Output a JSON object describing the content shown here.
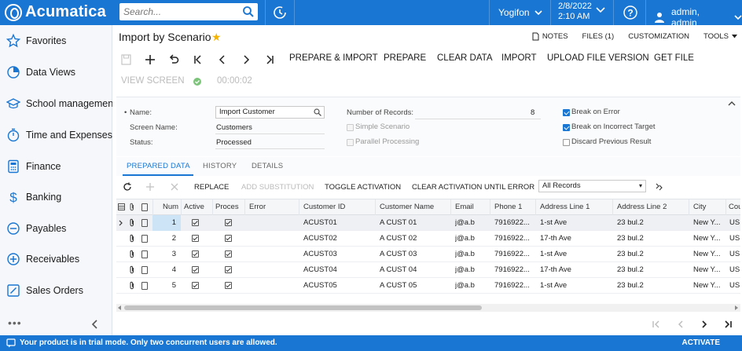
{
  "app": {
    "brand": "Acumatica",
    "search_placeholder": "Search...",
    "tenant": "Yogifon",
    "date": "2/8/2022",
    "time": "2:10 AM",
    "user": "admin, admin",
    "accent_color": "#1976d2"
  },
  "sidebar": {
    "items": [
      {
        "label": "Favorites",
        "icon": "star-icon"
      },
      {
        "label": "Data Views",
        "icon": "pie-chart-icon"
      },
      {
        "label": "School management",
        "icon": "graduation-cap-icon"
      },
      {
        "label": "Time and Expenses",
        "icon": "stopwatch-icon"
      },
      {
        "label": "Finance",
        "icon": "calculator-icon"
      },
      {
        "label": "Banking",
        "icon": "dollar-icon"
      },
      {
        "label": "Payables",
        "icon": "minus-circle-icon"
      },
      {
        "label": "Receivables",
        "icon": "plus-circle-icon"
      },
      {
        "label": "Sales Orders",
        "icon": "pencil-icon"
      }
    ],
    "more": "•••"
  },
  "page": {
    "title": "Import by Scenario",
    "links": {
      "notes": "NOTES",
      "files": "FILES (1)",
      "customization": "CUSTOMIZATION",
      "tools": "TOOLS"
    }
  },
  "toolbar": {
    "prepare_import": "PREPARE & IMPORT",
    "prepare": "PREPARE",
    "clear_data": "CLEAR DATA",
    "import": "IMPORT",
    "upload_file_version": "UPLOAD FILE VERSION",
    "get_file": "GET FILE",
    "view_screen": "VIEW SCREEN",
    "timer": "00:00:02"
  },
  "form": {
    "name_label": "Name:",
    "name_value": "Import Customer",
    "screen_name_label": "Screen Name:",
    "screen_name_value": "Customers",
    "status_label": "Status:",
    "status_value": "Processed",
    "records_label": "Number of Records:",
    "records_value": "8",
    "simple_scenario": "Simple Scenario",
    "parallel_processing": "Parallel Processing",
    "break_on_error": "Break on Error",
    "break_on_incorrect_target": "Break on Incorrect Target",
    "discard_previous_result": "Discard Previous Result"
  },
  "tabs": [
    "PREPARED DATA",
    "HISTORY",
    "DETAILS"
  ],
  "grid_toolbar": {
    "replace": "REPLACE",
    "add_substitution": "ADD SUBSTITUTION",
    "toggle_activation": "TOGGLE ACTIVATION",
    "clear_activation": "CLEAR ACTIVATION UNTIL ERROR",
    "filter": "All Records"
  },
  "grid": {
    "headers": [
      "Num",
      "Active",
      "Proces",
      "Error",
      "Customer ID",
      "Customer Name",
      "Email",
      "Phone 1",
      "Address Line 1",
      "Address Line 2",
      "City",
      "Cou"
    ],
    "rows": [
      {
        "num": "1",
        "customer_id": "ACUST01",
        "customer_name": "A CUST 01",
        "email": "j@a.b",
        "phone": "7916922...",
        "address1": "1-st Ave",
        "address2": "23 bul.2",
        "city": "New Y...",
        "country": "US"
      },
      {
        "num": "2",
        "customer_id": "ACUST02",
        "customer_name": "A CUST 02",
        "email": "j@a.b",
        "phone": "7916922...",
        "address1": "17-th Ave",
        "address2": "23 bul.2",
        "city": "New Y...",
        "country": "US"
      },
      {
        "num": "3",
        "customer_id": "ACUST03",
        "customer_name": "A CUST 03",
        "email": "j@a.b",
        "phone": "7916922...",
        "address1": "1-st Ave",
        "address2": "23 bul.2",
        "city": "New Y...",
        "country": "US"
      },
      {
        "num": "4",
        "customer_id": "ACUST04",
        "customer_name": "A CUST 04",
        "email": "j@a.b",
        "phone": "7916922...",
        "address1": "17-th Ave",
        "address2": "23 bul.2",
        "city": "New Y...",
        "country": "US"
      },
      {
        "num": "5",
        "customer_id": "ACUST05",
        "customer_name": "A CUST 05",
        "email": "j@a.b",
        "phone": "7916922...",
        "address1": "1-st Ave",
        "address2": "23 bul.2",
        "city": "New Y...",
        "country": "US"
      }
    ]
  },
  "status_bar": {
    "message": "Your product is in trial mode. Only two concurrent users are allowed.",
    "action": "ACTIVATE"
  }
}
